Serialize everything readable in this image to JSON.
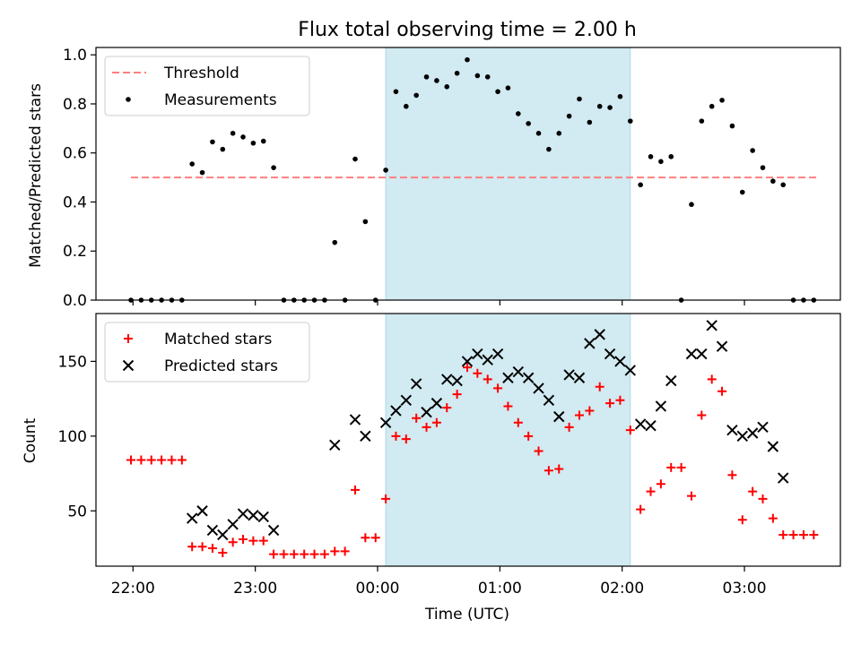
{
  "chart_data": {
    "type": "scatter",
    "title": "Flux total observing time = 2.00 h",
    "xlabel": "Time (UTC)",
    "x_ticks": [
      "22:00",
      "23:00",
      "00:00",
      "01:00",
      "02:00",
      "03:00"
    ],
    "highlight_span": [
      "00:04",
      "02:04"
    ],
    "colors": {
      "threshold": "#ff7f7f",
      "measurements": "#000000",
      "matched": "#ff0000",
      "predicted": "#000000",
      "span": "#add8e6"
    },
    "panels": [
      {
        "ylabel": "Matched/Predicted stars",
        "ylim": [
          0,
          1.03
        ],
        "y_ticks": [
          "0.0",
          "0.2",
          "0.4",
          "0.6",
          "0.8",
          "1.0"
        ],
        "legend": {
          "placement": "upper-left",
          "entries": [
            "Threshold",
            "Measurements"
          ]
        },
        "series": [
          {
            "name": "Threshold",
            "kind": "hline",
            "y": 0.5,
            "x_range": [
              "21:59",
              "03:36"
            ]
          },
          {
            "name": "Measurements",
            "kind": "dot",
            "points": [
              [
                "21:59",
                0
              ],
              [
                "22:04",
                0
              ],
              [
                "22:09",
                0
              ],
              [
                "22:14",
                0
              ],
              [
                "22:19",
                0
              ],
              [
                "22:24",
                0
              ],
              [
                "22:29",
                0.555
              ],
              [
                "22:34",
                0.52
              ],
              [
                "22:39",
                0.645
              ],
              [
                "22:44",
                0.615
              ],
              [
                "22:49",
                0.68
              ],
              [
                "22:54",
                0.665
              ],
              [
                "22:59",
                0.64
              ],
              [
                "23:04",
                0.648
              ],
              [
                "23:09",
                0.54
              ],
              [
                "23:14",
                0
              ],
              [
                "23:19",
                0
              ],
              [
                "23:24",
                0
              ],
              [
                "23:29",
                0
              ],
              [
                "23:34",
                0
              ],
              [
                "23:39",
                0.235
              ],
              [
                "23:44",
                0
              ],
              [
                "23:49",
                0.575
              ],
              [
                "23:54",
                0.32
              ],
              [
                "23:59",
                0
              ],
              [
                "00:04",
                0.53
              ],
              [
                "00:09",
                0.85
              ],
              [
                "00:14",
                0.79
              ],
              [
                "00:19",
                0.835
              ],
              [
                "00:24",
                0.91
              ],
              [
                "00:29",
                0.895
              ],
              [
                "00:34",
                0.87
              ],
              [
                "00:39",
                0.925
              ],
              [
                "00:44",
                0.98
              ],
              [
                "00:49",
                0.915
              ],
              [
                "00:54",
                0.91
              ],
              [
                "00:59",
                0.85
              ],
              [
                "01:04",
                0.865
              ],
              [
                "01:09",
                0.76
              ],
              [
                "01:14",
                0.72
              ],
              [
                "01:19",
                0.68
              ],
              [
                "01:24",
                0.615
              ],
              [
                "01:29",
                0.68
              ],
              [
                "01:34",
                0.75
              ],
              [
                "01:39",
                0.82
              ],
              [
                "01:44",
                0.725
              ],
              [
                "01:49",
                0.79
              ],
              [
                "01:54",
                0.785
              ],
              [
                "01:59",
                0.83
              ],
              [
                "02:04",
                0.73
              ],
              [
                "02:09",
                0.47
              ],
              [
                "02:14",
                0.585
              ],
              [
                "02:19",
                0.565
              ],
              [
                "02:24",
                0.585
              ],
              [
                "02:29",
                0
              ],
              [
                "02:34",
                0.39
              ],
              [
                "02:39",
                0.73
              ],
              [
                "02:44",
                0.79
              ],
              [
                "02:49",
                0.815
              ],
              [
                "02:54",
                0.71
              ],
              [
                "02:59",
                0.44
              ],
              [
                "03:04",
                0.61
              ],
              [
                "03:09",
                0.54
              ],
              [
                "03:14",
                0.485
              ],
              [
                "03:19",
                0.47
              ],
              [
                "03:24",
                0
              ],
              [
                "03:29",
                0
              ],
              [
                "03:34",
                0
              ]
            ]
          }
        ]
      },
      {
        "ylabel": "Count",
        "ylim": [
          13,
          182
        ],
        "y_ticks": [
          "50",
          "100",
          "150"
        ],
        "legend": {
          "placement": "upper-left",
          "entries": [
            "Matched stars",
            "Predicted stars"
          ]
        },
        "series": [
          {
            "name": "Matched stars",
            "kind": "plus",
            "points": [
              [
                "21:59",
                84
              ],
              [
                "22:04",
                84
              ],
              [
                "22:09",
                84
              ],
              [
                "22:14",
                84
              ],
              [
                "22:19",
                84
              ],
              [
                "22:24",
                84
              ],
              [
                "22:29",
                26
              ],
              [
                "22:34",
                26
              ],
              [
                "22:39",
                25
              ],
              [
                "22:44",
                22
              ],
              [
                "22:49",
                29
              ],
              [
                "22:54",
                31
              ],
              [
                "22:59",
                30
              ],
              [
                "23:04",
                30
              ],
              [
                "23:09",
                21
              ],
              [
                "23:14",
                21
              ],
              [
                "23:19",
                21
              ],
              [
                "23:24",
                21
              ],
              [
                "23:29",
                21
              ],
              [
                "23:34",
                21
              ],
              [
                "23:39",
                23
              ],
              [
                "23:44",
                23
              ],
              [
                "23:49",
                64
              ],
              [
                "23:54",
                32
              ],
              [
                "23:59",
                32
              ],
              [
                "00:04",
                58
              ],
              [
                "00:09",
                100
              ],
              [
                "00:14",
                98
              ],
              [
                "00:19",
                112
              ],
              [
                "00:24",
                106
              ],
              [
                "00:29",
                109
              ],
              [
                "00:34",
                119
              ],
              [
                "00:39",
                128
              ],
              [
                "00:44",
                146
              ],
              [
                "00:49",
                142
              ],
              [
                "00:54",
                138
              ],
              [
                "00:59",
                132
              ],
              [
                "01:04",
                120
              ],
              [
                "01:09",
                109
              ],
              [
                "01:14",
                100
              ],
              [
                "01:19",
                90
              ],
              [
                "01:24",
                77
              ],
              [
                "01:29",
                78
              ],
              [
                "01:34",
                106
              ],
              [
                "01:39",
                114
              ],
              [
                "01:44",
                117
              ],
              [
                "01:49",
                133
              ],
              [
                "01:54",
                122
              ],
              [
                "01:59",
                124
              ],
              [
                "02:04",
                104
              ],
              [
                "02:09",
                51
              ],
              [
                "02:14",
                63
              ],
              [
                "02:19",
                68
              ],
              [
                "02:24",
                79
              ],
              [
                "02:29",
                79
              ],
              [
                "02:34",
                60
              ],
              [
                "02:39",
                114
              ],
              [
                "02:44",
                138
              ],
              [
                "02:49",
                130
              ],
              [
                "02:54",
                74
              ],
              [
                "02:59",
                44
              ],
              [
                "03:04",
                63
              ],
              [
                "03:09",
                58
              ],
              [
                "03:14",
                45
              ],
              [
                "03:19",
                34
              ],
              [
                "03:24",
                34
              ],
              [
                "03:29",
                34
              ],
              [
                "03:34",
                34
              ]
            ]
          },
          {
            "name": "Predicted stars",
            "kind": "x",
            "points": [
              [
                "22:29",
                45
              ],
              [
                "22:34",
                50
              ],
              [
                "22:39",
                37
              ],
              [
                "22:44",
                34
              ],
              [
                "22:49",
                41
              ],
              [
                "22:54",
                48
              ],
              [
                "22:59",
                47
              ],
              [
                "23:04",
                46
              ],
              [
                "23:09",
                37
              ],
              [
                "23:39",
                94
              ],
              [
                "23:49",
                111
              ],
              [
                "23:54",
                100
              ],
              [
                "00:04",
                109
              ],
              [
                "00:09",
                117
              ],
              [
                "00:14",
                124
              ],
              [
                "00:19",
                135
              ],
              [
                "00:24",
                116
              ],
              [
                "00:29",
                122
              ],
              [
                "00:34",
                138
              ],
              [
                "00:39",
                137
              ],
              [
                "00:44",
                150
              ],
              [
                "00:49",
                155
              ],
              [
                "00:54",
                151
              ],
              [
                "00:59",
                155
              ],
              [
                "01:04",
                139
              ],
              [
                "01:09",
                143
              ],
              [
                "01:14",
                139
              ],
              [
                "01:19",
                132
              ],
              [
                "01:24",
                124
              ],
              [
                "01:29",
                113
              ],
              [
                "01:34",
                141
              ],
              [
                "01:39",
                139
              ],
              [
                "01:44",
                162
              ],
              [
                "01:49",
                168
              ],
              [
                "01:54",
                155
              ],
              [
                "01:59",
                150
              ],
              [
                "02:04",
                144
              ],
              [
                "02:09",
                108
              ],
              [
                "02:14",
                107
              ],
              [
                "02:19",
                120
              ],
              [
                "02:24",
                137
              ],
              [
                "02:34",
                155
              ],
              [
                "02:39",
                155
              ],
              [
                "02:44",
                174
              ],
              [
                "02:49",
                160
              ],
              [
                "02:54",
                104
              ],
              [
                "02:59",
                100
              ],
              [
                "03:04",
                102
              ],
              [
                "03:09",
                106
              ],
              [
                "03:14",
                93
              ],
              [
                "03:19",
                72
              ]
            ]
          }
        ]
      }
    ]
  }
}
